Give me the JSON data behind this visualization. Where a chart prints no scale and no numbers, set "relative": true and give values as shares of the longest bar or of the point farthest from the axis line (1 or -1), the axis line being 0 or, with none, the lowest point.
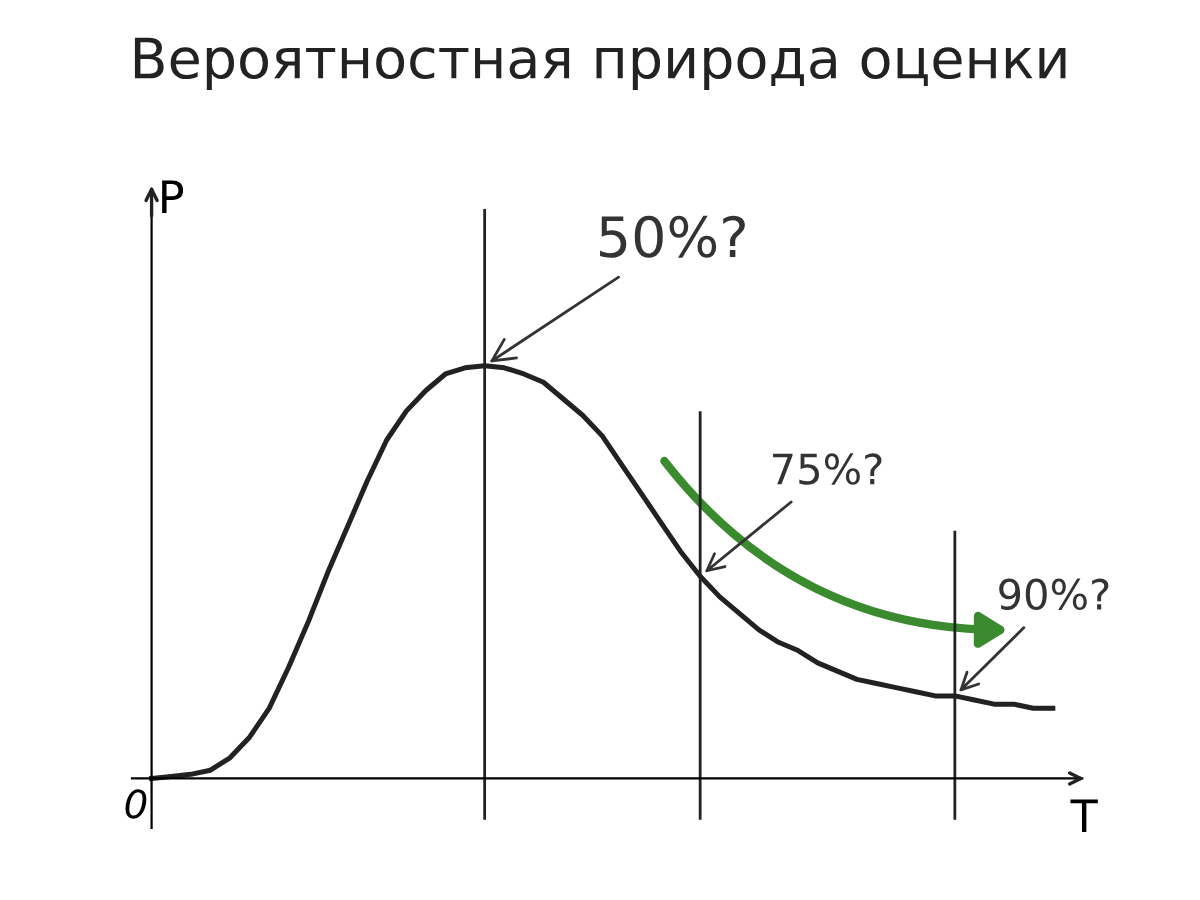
{
  "chart_data": {
    "type": "line",
    "title": "Вероятностная природа оценки",
    "xlabel": "T",
    "ylabel": "P",
    "relative": true,
    "categories": [
      null,
      null,
      null,
      null,
      null,
      null,
      null,
      null,
      null,
      null,
      null,
      null,
      null,
      null,
      null,
      null,
      null,
      null,
      null,
      null,
      null,
      null,
      null,
      null,
      null,
      null,
      null,
      null,
      null,
      null,
      null,
      null,
      null,
      null,
      null,
      null,
      null,
      null,
      null,
      null,
      null,
      null,
      null,
      null,
      null,
      null,
      null
    ],
    "series": [
      {
        "color": "#222222",
        "values": [
          0,
          0.005,
          0.01,
          0.02,
          0.05,
          0.1,
          0.17,
          0.27,
          0.38,
          0.5,
          0.61,
          0.72,
          0.82,
          0.89,
          0.94,
          0.98,
          0.995,
          1,
          0.995,
          0.98,
          0.96,
          0.92,
          0.88,
          0.83,
          0.76,
          0.69,
          0.62,
          0.55,
          0.49,
          0.44,
          0.4,
          0.36,
          0.33,
          0.31,
          0.28,
          0.26,
          0.24,
          0.23,
          0.22,
          0.21,
          0.2,
          0.2,
          0.19,
          0.18,
          0.18,
          0.17,
          0.17
        ]
      }
    ],
    "annotations": [
      "0",
      "50%?",
      "75%?",
      "90%?"
    ],
    "legend": false,
    "marker": "none",
    "line_style": "solid"
  }
}
